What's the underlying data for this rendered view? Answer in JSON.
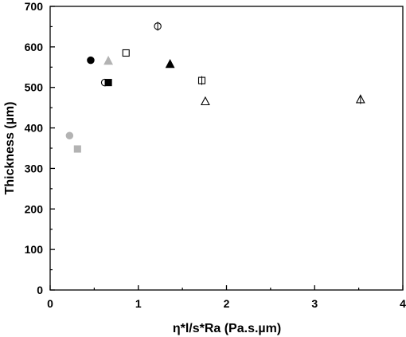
{
  "chart_data": {
    "type": "scatter",
    "title": "",
    "xlabel": "η*l/s*Ra (Pa.s.µm)",
    "ylabel": "Thickness (µm)",
    "xlim": [
      0,
      4
    ],
    "ylim": [
      0,
      700
    ],
    "x_ticks": [
      0,
      1,
      2,
      3,
      4
    ],
    "y_ticks": [
      0,
      100,
      200,
      300,
      400,
      500,
      600,
      700
    ],
    "grid": false,
    "legend": "none",
    "points": [
      {
        "x": 0.22,
        "y": 381,
        "marker": "circle",
        "fill": "#b3b3b3",
        "stroke": "#b3b3b3"
      },
      {
        "x": 0.31,
        "y": 348,
        "marker": "square",
        "fill": "#b3b3b3",
        "stroke": "#b3b3b3"
      },
      {
        "x": 0.46,
        "y": 567,
        "marker": "circle",
        "fill": "#000000",
        "stroke": "#000000"
      },
      {
        "x": 0.62,
        "y": 512,
        "marker": "circle",
        "fill": "#ffffff",
        "stroke": "#000000"
      },
      {
        "x": 0.66,
        "y": 565,
        "marker": "triangle",
        "fill": "#b3b3b3",
        "stroke": "#b3b3b3"
      },
      {
        "x": 0.66,
        "y": 512,
        "marker": "square",
        "fill": "#000000",
        "stroke": "#000000"
      },
      {
        "x": 0.86,
        "y": 585,
        "marker": "square",
        "fill": "#ffffff",
        "stroke": "#000000"
      },
      {
        "x": 1.22,
        "y": 651,
        "marker": "circle-vbar",
        "fill": "#ffffff",
        "stroke": "#000000"
      },
      {
        "x": 1.36,
        "y": 557,
        "marker": "triangle",
        "fill": "#000000",
        "stroke": "#000000"
      },
      {
        "x": 1.72,
        "y": 517,
        "marker": "square-vbar",
        "fill": "#ffffff",
        "stroke": "#000000"
      },
      {
        "x": 1.76,
        "y": 465,
        "marker": "triangle",
        "fill": "#ffffff",
        "stroke": "#000000"
      },
      {
        "x": 3.52,
        "y": 470,
        "marker": "triangle-vbar",
        "fill": "#ffffff",
        "stroke": "#000000"
      }
    ]
  }
}
